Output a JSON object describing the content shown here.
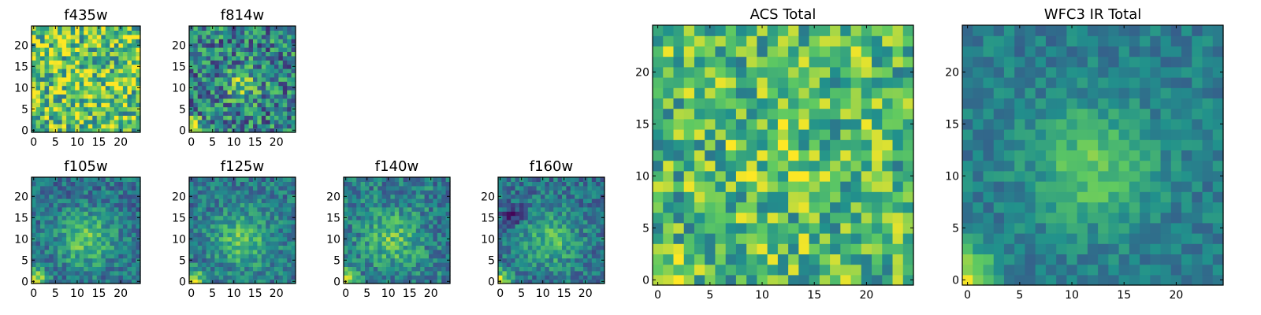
{
  "chart_data": [
    {
      "type": "heatmap",
      "title": "f435w",
      "xlim": [
        0,
        24
      ],
      "ylim": [
        0,
        24
      ],
      "xticks": [
        "0",
        "5",
        "10",
        "15",
        "20"
      ],
      "yticks": [
        "0",
        "5",
        "10",
        "15",
        "20"
      ],
      "grid": false,
      "pattern": {
        "base": 0.72,
        "noise": 0.36,
        "cx": 12,
        "cy": 11,
        "sigma": 4,
        "amp": 0.05,
        "corner": 0.0,
        "seed": 11
      }
    },
    {
      "type": "heatmap",
      "title": "f814w",
      "xlim": [
        0,
        24
      ],
      "ylim": [
        0,
        24
      ],
      "xticks": [
        "0",
        "5",
        "10",
        "15",
        "20"
      ],
      "yticks": [
        "0",
        "5",
        "10",
        "15",
        "20"
      ],
      "grid": false,
      "pattern": {
        "base": 0.45,
        "noise": 0.32,
        "cx": 12,
        "cy": 11,
        "sigma": 2.5,
        "amp": 0.35,
        "corner": 0.6,
        "seed": 23
      }
    },
    {
      "type": "heatmap",
      "title": "f105w",
      "xlim": [
        0,
        24
      ],
      "ylim": [
        0,
        24
      ],
      "xticks": [
        "0",
        "5",
        "10",
        "15",
        "20"
      ],
      "yticks": [
        "0",
        "5",
        "10",
        "15",
        "20"
      ],
      "grid": false,
      "pattern": {
        "base": 0.38,
        "noise": 0.18,
        "cx": 12,
        "cy": 10,
        "sigma": 4.5,
        "amp": 0.35,
        "corner": 0.65,
        "seed": 37
      }
    },
    {
      "type": "heatmap",
      "title": "f125w",
      "xlim": [
        0,
        24
      ],
      "ylim": [
        0,
        24
      ],
      "xticks": [
        "0",
        "5",
        "10",
        "15",
        "20"
      ],
      "yticks": [
        "0",
        "5",
        "10",
        "15",
        "20"
      ],
      "grid": false,
      "pattern": {
        "base": 0.4,
        "noise": 0.18,
        "cx": 12,
        "cy": 10,
        "sigma": 4.5,
        "amp": 0.32,
        "corner": 0.62,
        "seed": 41
      }
    },
    {
      "type": "heatmap",
      "title": "f140w",
      "xlim": [
        0,
        24
      ],
      "ylim": [
        0,
        24
      ],
      "xticks": [
        "0",
        "5",
        "10",
        "15",
        "20"
      ],
      "yticks": [
        "0",
        "5",
        "10",
        "15",
        "20"
      ],
      "grid": false,
      "pattern": {
        "base": 0.42,
        "noise": 0.2,
        "cx": 11,
        "cy": 10,
        "sigma": 4.5,
        "amp": 0.3,
        "corner": 0.6,
        "seed": 53
      }
    },
    {
      "type": "heatmap",
      "title": "f160w",
      "xlim": [
        0,
        24
      ],
      "ylim": [
        0,
        24
      ],
      "xticks": [
        "0",
        "5",
        "10",
        "15",
        "20"
      ],
      "yticks": [
        "0",
        "5",
        "10",
        "15",
        "20"
      ],
      "grid": false,
      "pattern": {
        "base": 0.38,
        "noise": 0.18,
        "cx": 12,
        "cy": 10,
        "sigma": 4.5,
        "amp": 0.3,
        "corner": 0.62,
        "seed": 67,
        "darkpatch": [
          3,
          16,
          0.3
        ]
      }
    },
    {
      "type": "heatmap",
      "title": "ACS Total",
      "xlim": [
        0,
        24
      ],
      "ylim": [
        0,
        24
      ],
      "xticks": [
        "0",
        "5",
        "10",
        "15",
        "20"
      ],
      "yticks": [
        "0",
        "5",
        "10",
        "15",
        "20"
      ],
      "grid": false,
      "pattern": {
        "base": 0.68,
        "noise": 0.3,
        "cx": 12,
        "cy": 11,
        "sigma": 3,
        "amp": 0.1,
        "corner": 0.35,
        "seed": 79
      }
    },
    {
      "type": "heatmap",
      "title": "WFC3 IR Total",
      "xlim": [
        0,
        24
      ],
      "ylim": [
        0,
        24
      ],
      "xticks": [
        "0",
        "5",
        "10",
        "15",
        "20"
      ],
      "yticks": [
        "0",
        "5",
        "10",
        "15",
        "20"
      ],
      "grid": false,
      "pattern": {
        "base": 0.42,
        "noise": 0.12,
        "cx": 12,
        "cy": 11,
        "sigma": 4,
        "amp": 0.32,
        "corner": 0.62,
        "seed": 97
      }
    }
  ],
  "colormap": [
    "#440154",
    "#3b528b",
    "#21918c",
    "#5ec962",
    "#fde725"
  ]
}
